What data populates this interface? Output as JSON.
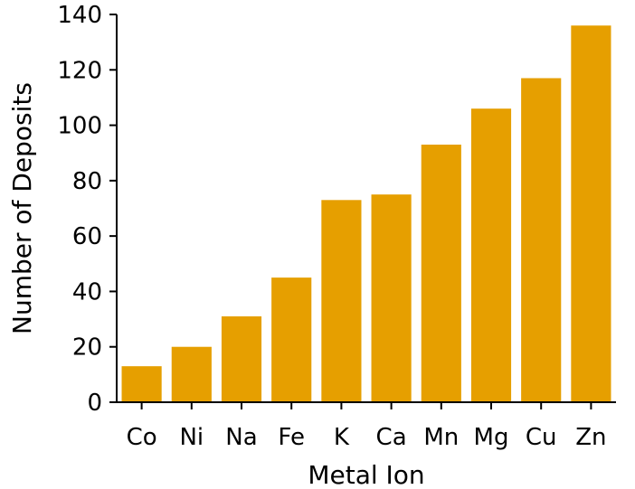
{
  "chart_data": {
    "type": "bar",
    "title": "",
    "xlabel": "Metal Ion",
    "ylabel": "Number of Deposits",
    "categories": [
      "Co",
      "Ni",
      "Na",
      "Fe",
      "K",
      "Ca",
      "Mn",
      "Mg",
      "Cu",
      "Zn"
    ],
    "values": [
      13,
      20,
      31,
      45,
      73,
      75,
      93,
      106,
      117,
      136
    ],
    "ylim": [
      0,
      140
    ],
    "yticks": [
      0,
      20,
      40,
      60,
      80,
      100,
      120,
      140
    ],
    "grid": false,
    "bar_color": "#E69F00"
  }
}
